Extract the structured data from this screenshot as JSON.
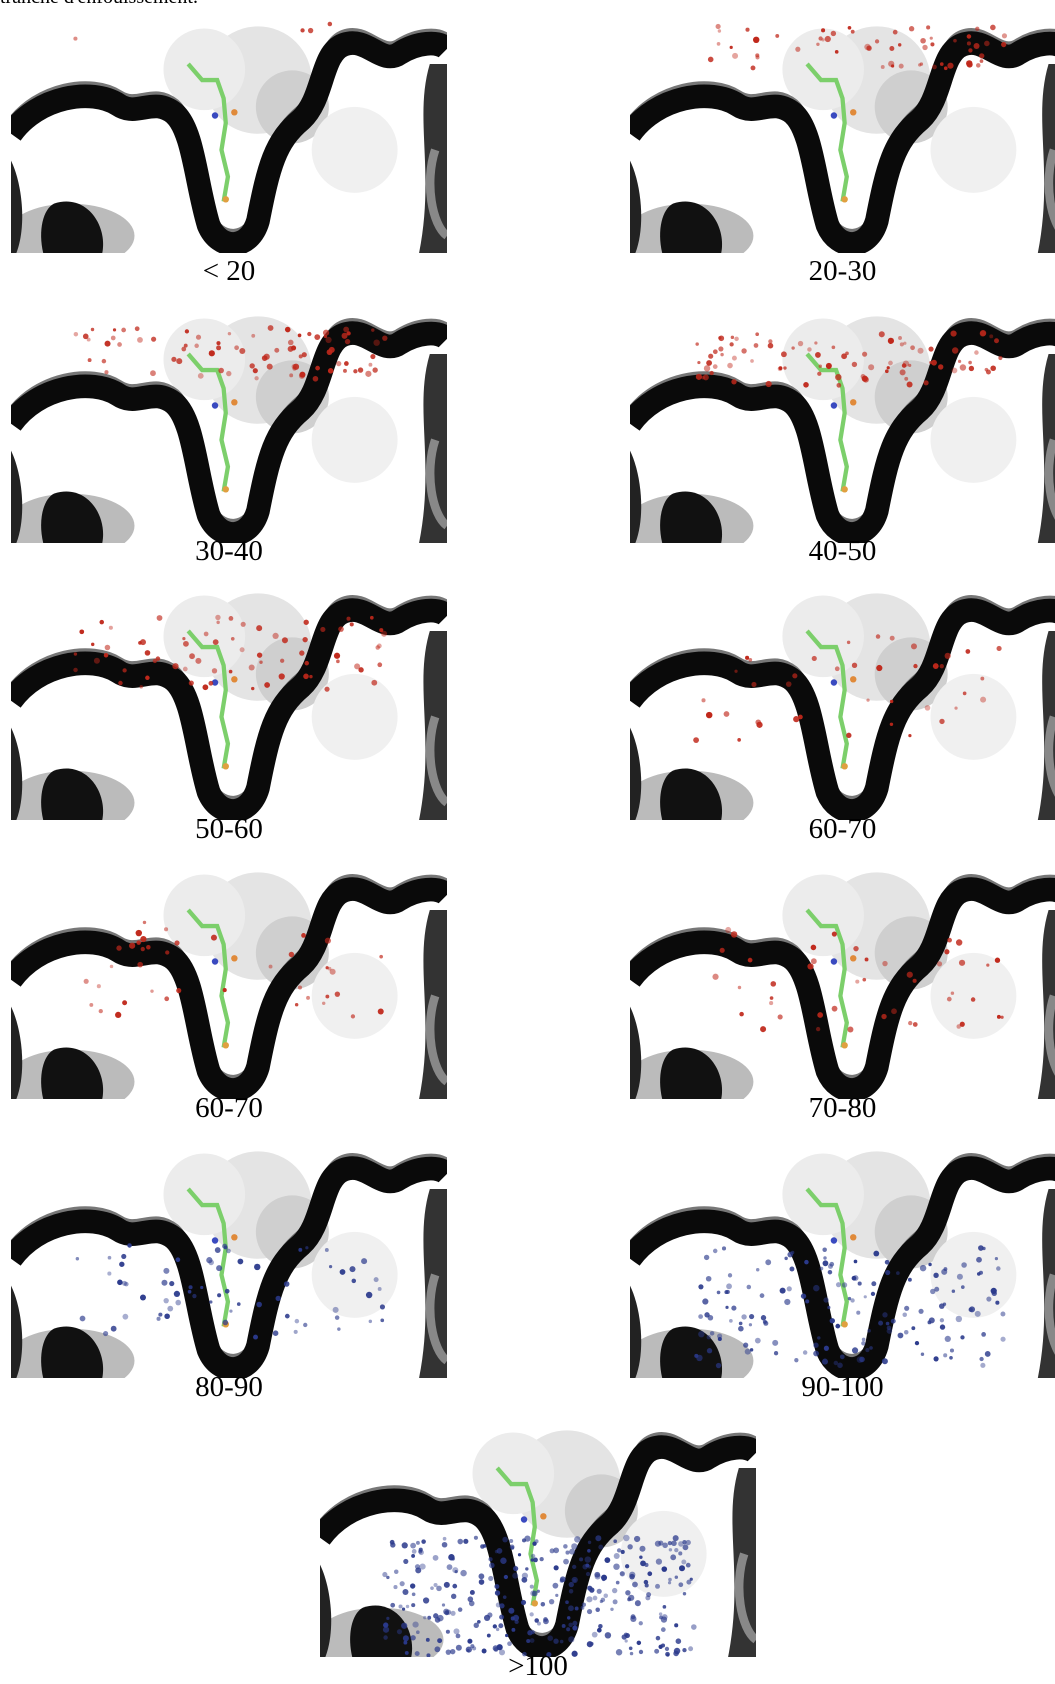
{
  "caption_fragment": "tranche d'enfouissement.",
  "panels": [
    {
      "label": "< 20"
    },
    {
      "label": "20-30"
    },
    {
      "label": "30-40"
    },
    {
      "label": "40-50"
    },
    {
      "label": "50-60"
    },
    {
      "label": "60-70"
    },
    {
      "label": "60-70"
    },
    {
      "label": "70-80"
    },
    {
      "label": "80-90"
    },
    {
      "label": "90-100"
    },
    {
      "label": ">100"
    }
  ]
}
